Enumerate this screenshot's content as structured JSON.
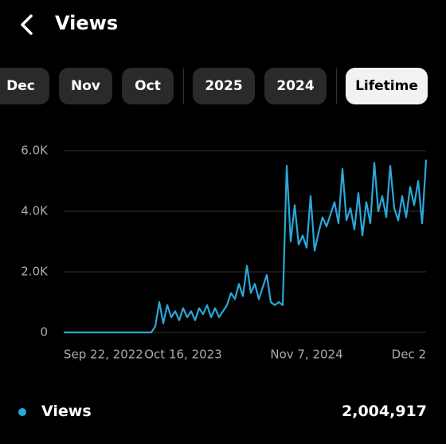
{
  "header": {
    "title": "Views"
  },
  "tabs": [
    "Dec",
    "Nov",
    "Oct",
    "2025",
    "2024",
    "Lifetime"
  ],
  "selected_tab": "Lifetime",
  "chart_data": {
    "type": "line",
    "categories": [
      "Sep 22, 2022",
      null,
      null,
      null,
      null,
      null,
      null,
      null,
      null,
      null,
      null,
      null,
      null,
      null,
      null,
      null,
      null,
      null,
      null,
      null,
      null,
      null,
      null,
      null,
      null,
      null,
      null,
      null,
      null,
      null,
      "Oct 16, 2023",
      null,
      null,
      null,
      null,
      null,
      null,
      null,
      null,
      null,
      null,
      null,
      null,
      null,
      null,
      null,
      null,
      null,
      null,
      null,
      null,
      null,
      null,
      null,
      null,
      null,
      null,
      null,
      null,
      null,
      null,
      "Nov 7, 2024",
      null,
      null,
      null,
      null,
      null,
      null,
      null,
      null,
      null,
      null,
      null,
      null,
      null,
      null,
      null,
      null,
      null,
      null,
      null,
      null,
      null,
      null,
      null,
      null,
      null,
      null,
      null,
      null,
      null,
      "Dec 2"
    ],
    "series": [
      {
        "name": "Views",
        "color": "#2aa8d8",
        "values": [
          0,
          0,
          0,
          0,
          0,
          0,
          0,
          0,
          0,
          0,
          0,
          0,
          0,
          0,
          0,
          0,
          0,
          0,
          0,
          0,
          0,
          0,
          0,
          200,
          1000,
          300,
          900,
          500,
          700,
          400,
          800,
          500,
          700,
          400,
          800,
          600,
          900,
          500,
          800,
          500,
          700,
          900,
          1300,
          1100,
          1600,
          1200,
          2200,
          1300,
          1600,
          1100,
          1500,
          1900,
          1000,
          900,
          1000,
          900,
          5500,
          3000,
          4200,
          2900,
          3200,
          2800,
          4500,
          2700,
          3300,
          3800,
          3500,
          3900,
          4300,
          3600,
          5400,
          3700,
          4100,
          3400,
          4600,
          3200,
          4300,
          3600,
          5600,
          4000,
          4500,
          3800,
          5500,
          4100,
          3700,
          4500,
          3800,
          4800,
          4200,
          5000,
          3600,
          5700
        ]
      }
    ],
    "ylim": [
      0,
      6000
    ],
    "yticks": [
      0,
      {
        "value": 2000,
        "label": "2.0K"
      },
      {
        "value": 4000,
        "label": "4.0K"
      },
      {
        "value": 6000,
        "label": "6.0K"
      }
    ],
    "grid": true
  },
  "summary": {
    "label": "Views",
    "value": "2,004,917"
  }
}
